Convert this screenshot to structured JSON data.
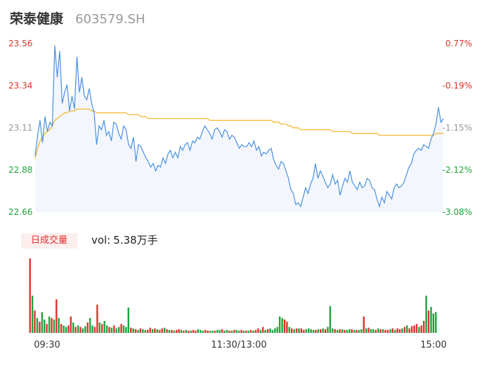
{
  "stock": {
    "name": "荣泰健康",
    "code": "603579.SH"
  },
  "volume_panel": {
    "badge": "日成交量",
    "label": "vol:",
    "value": "5.38万手"
  },
  "colors": {
    "up": "#e0312e",
    "down": "#1ea33c",
    "neutral": "#999999",
    "price_line": "#4a90e2",
    "avg_line": "#f5b021"
  },
  "chart_data": [
    {
      "type": "line",
      "title": "",
      "ylim": [
        22.66,
        23.56
      ],
      "y_ticks": [
        "23.56",
        "23.34",
        "23.11",
        "22.88",
        "22.66"
      ],
      "pct_ticks": [
        "0.77%",
        "-0.19%",
        "-1.15%",
        "-2.12%",
        "-3.08%"
      ],
      "x_ticks": [
        "09:30",
        "11:30/13:00",
        "15:00"
      ],
      "series": [
        {
          "values": [
            22.96,
            23.07,
            23.15,
            23.03,
            23.17,
            23.09,
            23.14,
            23.12,
            23.55,
            23.38,
            23.52,
            23.24,
            23.3,
            23.34,
            23.2,
            23.28,
            23.21,
            23.49,
            23.3,
            23.38,
            23.28,
            23.26,
            23.32,
            23.24,
            23.19,
            23.02,
            23.12,
            23.1,
            23.15,
            23.07,
            23.09,
            23.04,
            23.14,
            23.13,
            23.08,
            23.05,
            23.12,
            23.1,
            23.02,
            23.0,
            23.06,
            22.93,
            23.02,
            23.01,
            22.98,
            22.95,
            22.93,
            22.9,
            22.92,
            22.88,
            22.91,
            22.9,
            22.95,
            22.92,
            22.97,
            22.99,
            22.95,
            22.98,
            22.95,
            23.01,
            22.99,
            23.02,
            23.03,
            22.99,
            23.04,
            23.03,
            23.06,
            23.05,
            23.09,
            23.12,
            23.1,
            23.08,
            23.05,
            23.1,
            23.11,
            23.09,
            23.06,
            23.1,
            23.09,
            23.05,
            23.07,
            23.06,
            23.03,
            23.0,
            23.02,
            23.01,
            23.01,
            23.03,
            23.01,
            23.04,
            22.99,
            23.01,
            22.96,
            22.98,
            22.97,
            22.99,
            23.0,
            22.94,
            22.91,
            22.89,
            22.93,
            22.92,
            22.88,
            22.84,
            22.78,
            22.76,
            22.7,
            22.71,
            22.69,
            22.74,
            22.79,
            22.76,
            22.81,
            22.84,
            22.92,
            22.84,
            22.88,
            22.85,
            22.82,
            22.79,
            22.81,
            22.86,
            22.81,
            22.83,
            22.75,
            22.8,
            22.84,
            22.82,
            22.88,
            22.82,
            22.8,
            22.78,
            22.82,
            22.79,
            22.8,
            22.84,
            22.83,
            22.79,
            22.78,
            22.73,
            22.69,
            22.74,
            22.71,
            22.77,
            22.75,
            22.73,
            22.79,
            22.81,
            22.79,
            22.8,
            22.82,
            22.86,
            22.9,
            22.92,
            22.97,
            22.99,
            23.0,
            22.99,
            23.02,
            23.01,
            23.0,
            23.05,
            23.08,
            23.13,
            23.22,
            23.14,
            23.16
          ]
        },
        {
          "values": [
            22.95,
            23.0,
            23.04,
            23.06,
            23.08,
            23.09,
            23.1,
            23.12,
            23.15,
            23.16,
            23.17,
            23.18,
            23.19,
            23.19,
            23.2,
            23.2,
            23.2,
            23.21,
            23.21,
            23.21,
            23.21,
            23.21,
            23.21,
            23.2,
            23.2,
            23.19,
            23.19,
            23.19,
            23.19,
            23.19,
            23.19,
            23.19,
            23.19,
            23.19,
            23.19,
            23.19,
            23.19,
            23.19,
            23.18,
            23.18,
            23.18,
            23.18,
            23.18,
            23.17,
            23.17,
            23.17,
            23.16,
            23.16,
            23.16,
            23.16,
            23.16,
            23.16,
            23.16,
            23.16,
            23.16,
            23.16,
            23.16,
            23.16,
            23.16,
            23.16,
            23.16,
            23.16,
            23.16,
            23.16,
            23.16,
            23.16,
            23.16,
            23.16,
            23.16,
            23.16,
            23.16,
            23.15,
            23.15,
            23.15,
            23.15,
            23.15,
            23.15,
            23.15,
            23.15,
            23.15,
            23.15,
            23.15,
            23.15,
            23.15,
            23.15,
            23.15,
            23.15,
            23.15,
            23.15,
            23.15,
            23.15,
            23.15,
            23.15,
            23.15,
            23.15,
            23.15,
            23.15,
            23.14,
            23.14,
            23.14,
            23.13,
            23.13,
            23.13,
            23.12,
            23.12,
            23.11,
            23.11,
            23.11,
            23.1,
            23.1,
            23.1,
            23.1,
            23.1,
            23.1,
            23.1,
            23.1,
            23.1,
            23.1,
            23.1,
            23.1,
            23.1,
            23.09,
            23.09,
            23.09,
            23.09,
            23.09,
            23.09,
            23.09,
            23.09,
            23.08,
            23.08,
            23.08,
            23.08,
            23.08,
            23.08,
            23.08,
            23.08,
            23.08,
            23.08,
            23.08,
            23.07,
            23.07,
            23.07,
            23.07,
            23.07,
            23.07,
            23.07,
            23.07,
            23.07,
            23.07,
            23.07,
            23.07,
            23.07,
            23.07,
            23.07,
            23.07,
            23.07,
            23.07,
            23.07,
            23.07,
            23.07,
            23.07,
            23.07,
            23.08,
            23.08,
            23.08,
            23.08
          ]
        }
      ]
    },
    {
      "type": "bar",
      "title": "",
      "ylim": [
        0,
        1
      ],
      "x_ticks": [
        "09:30",
        "11:30/13:00",
        "15:00"
      ],
      "values": [
        1.0,
        0.5,
        0.3,
        0.2,
        0.15,
        0.28,
        0.18,
        0.12,
        0.22,
        0.2,
        0.18,
        0.45,
        0.2,
        0.12,
        0.1,
        0.08,
        0.1,
        0.22,
        0.14,
        0.08,
        0.1,
        0.08,
        0.06,
        0.09,
        0.14,
        0.2,
        0.1,
        0.08,
        0.38,
        0.14,
        0.12,
        0.16,
        0.1,
        0.08,
        0.07,
        0.1,
        0.06,
        0.08,
        0.12,
        0.1,
        0.08,
        0.34,
        0.07,
        0.06,
        0.05,
        0.04,
        0.06,
        0.05,
        0.04,
        0.04,
        0.07,
        0.05,
        0.06,
        0.05,
        0.04,
        0.06,
        0.07,
        0.05,
        0.04,
        0.04,
        0.03,
        0.04,
        0.05,
        0.04,
        0.03,
        0.04,
        0.03,
        0.03,
        0.04,
        0.03,
        0.05,
        0.04,
        0.03,
        0.04,
        0.03,
        0.03,
        0.03,
        0.03,
        0.04,
        0.04,
        0.05,
        0.03,
        0.04,
        0.03,
        0.03,
        0.04,
        0.04,
        0.03,
        0.04,
        0.03,
        0.03,
        0.03,
        0.04,
        0.03,
        0.04,
        0.06,
        0.04,
        0.08,
        0.04,
        0.05,
        0.06,
        0.04,
        0.06,
        0.08,
        0.22,
        0.2,
        0.18,
        0.15,
        0.08,
        0.06,
        0.05,
        0.06,
        0.06,
        0.06,
        0.04,
        0.05,
        0.06,
        0.05,
        0.04,
        0.04,
        0.05,
        0.05,
        0.06,
        0.05,
        0.08,
        0.36,
        0.06,
        0.05,
        0.04,
        0.05,
        0.05,
        0.04,
        0.04,
        0.05,
        0.05,
        0.04,
        0.04,
        0.04,
        0.05,
        0.22,
        0.06,
        0.07,
        0.05,
        0.05,
        0.04,
        0.06,
        0.05,
        0.05,
        0.04,
        0.04,
        0.05,
        0.06,
        0.04,
        0.06,
        0.05,
        0.06,
        0.08,
        0.1,
        0.06,
        0.09,
        0.1,
        0.12,
        0.08,
        0.1,
        0.16,
        0.5,
        0.3,
        0.35,
        0.26,
        0.28
      ],
      "directions": [
        "up",
        "down",
        "up",
        "down",
        "up",
        "down",
        "down",
        "up",
        "down",
        "up",
        "down",
        "up",
        "down",
        "up",
        "down",
        "down",
        "up",
        "up",
        "down",
        "up",
        "down",
        "up",
        "down",
        "down",
        "up",
        "down",
        "down",
        "up",
        "up",
        "down",
        "up",
        "down",
        "down",
        "up",
        "down",
        "up",
        "down",
        "down",
        "up",
        "down",
        "down",
        "down",
        "up",
        "down",
        "up",
        "down",
        "up",
        "down",
        "down",
        "up",
        "up",
        "down",
        "up",
        "down",
        "up",
        "up",
        "down",
        "up",
        "down",
        "up",
        "down",
        "up",
        "up",
        "down",
        "up",
        "down",
        "up",
        "down",
        "up",
        "up",
        "down",
        "down",
        "down",
        "up",
        "up",
        "down",
        "down",
        "up",
        "down",
        "down",
        "up",
        "down",
        "down",
        "up",
        "down",
        "up",
        "down",
        "down",
        "up",
        "down",
        "up",
        "down",
        "up",
        "down",
        "up",
        "up",
        "down",
        "up",
        "down",
        "up",
        "down",
        "down",
        "down",
        "down",
        "down",
        "down",
        "up",
        "up",
        "down",
        "up",
        "down",
        "up",
        "down",
        "up",
        "up",
        "down",
        "down",
        "down",
        "down",
        "up",
        "down",
        "up",
        "down",
        "up",
        "down",
        "down",
        "down",
        "up",
        "down",
        "up",
        "down",
        "up",
        "down",
        "down",
        "up",
        "down",
        "up",
        "down",
        "down",
        "up",
        "down",
        "up",
        "down",
        "down",
        "up",
        "down",
        "up",
        "down",
        "up",
        "up",
        "down",
        "up",
        "down",
        "up",
        "up",
        "down",
        "up",
        "down",
        "up",
        "up",
        "up",
        "up",
        "down",
        "up",
        "up",
        "down",
        "up"
      ]
    }
  ]
}
